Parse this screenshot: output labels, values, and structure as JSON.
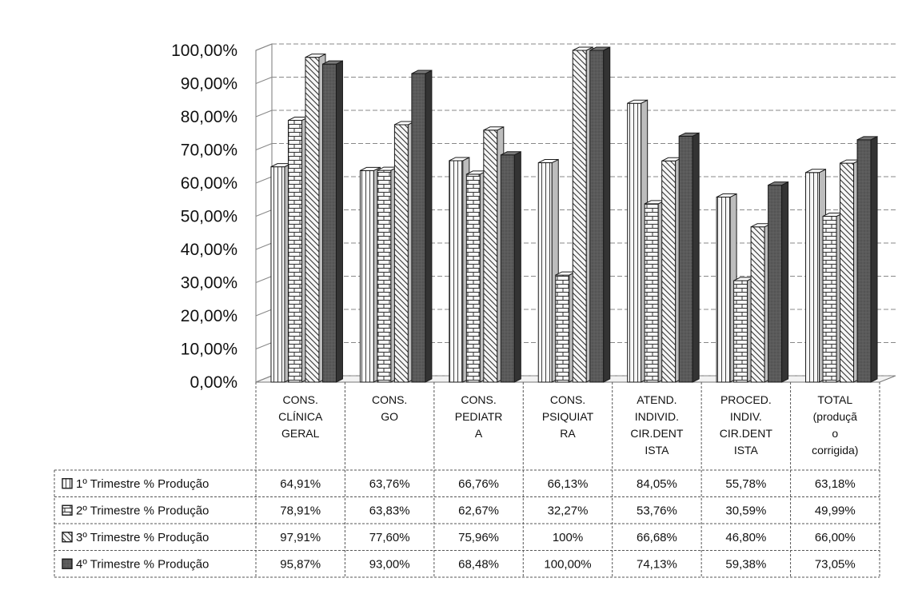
{
  "chart_data": {
    "type": "bar",
    "categories": [
      "CONS. CLÍNICA GERAL",
      "CONS. GO",
      "CONS. PEDIATRA",
      "CONS. PSIQUIATRA",
      "ATEND. INDIVID. CIR.DENTISTA",
      "PROCED. INDIV. CIR.DENTISTA",
      "TOTAL (produção corrigida)"
    ],
    "category_label_lines": [
      [
        "CONS.",
        "CLÍNICA",
        "GERAL"
      ],
      [
        "CONS.",
        "GO"
      ],
      [
        "CONS.",
        "PEDIATR",
        "A"
      ],
      [
        "CONS.",
        "PSIQUIAT",
        "RA"
      ],
      [
        "ATEND.",
        "INDIVID.",
        "CIR.DENT",
        "ISTA"
      ],
      [
        "PROCED.",
        "INDIV.",
        "CIR.DENT",
        "ISTA"
      ],
      [
        "TOTAL",
        "(produçã",
        "o",
        "corrigida)"
      ]
    ],
    "series": [
      {
        "name": "1º Trimestre % Produção",
        "pattern": "vertical-stripes",
        "values": [
          64.91,
          63.76,
          66.76,
          66.13,
          84.05,
          55.78,
          63.18
        ],
        "labels": [
          "64,91%",
          "63,76%",
          "66,76%",
          "66,13%",
          "84,05%",
          "55,78%",
          "63,18%"
        ]
      },
      {
        "name": "2º Trimestre % Produção",
        "pattern": "brick",
        "values": [
          78.91,
          63.83,
          62.67,
          32.27,
          53.76,
          30.59,
          49.99
        ],
        "labels": [
          "78,91%",
          "63,83%",
          "62,67%",
          "32,27%",
          "53,76%",
          "30,59%",
          "49,99%"
        ]
      },
      {
        "name": "3º Trimestre % Produção",
        "pattern": "diagonal-stripes",
        "values": [
          97.91,
          77.6,
          75.96,
          100,
          66.68,
          46.8,
          66.0
        ],
        "labels": [
          "97,91%",
          "77,60%",
          "75,96%",
          "100%",
          "66,68%",
          "46,80%",
          "66,00%"
        ]
      },
      {
        "name": "4º Trimestre % Produção",
        "pattern": "dark-solid",
        "values": [
          95.87,
          93.0,
          68.48,
          100.0,
          74.13,
          59.38,
          73.05
        ],
        "labels": [
          "95,87%",
          "93,00%",
          "68,48%",
          "100,00%",
          "74,13%",
          "59,38%",
          "73,05%"
        ]
      }
    ],
    "y_ticks": [
      "0,00%",
      "10,00%",
      "20,00%",
      "30,00%",
      "40,00%",
      "50,00%",
      "60,00%",
      "70,00%",
      "80,00%",
      "90,00%",
      "100,00%"
    ],
    "ylim": [
      0,
      100
    ],
    "grid": true,
    "legend_placement": "data-table-left",
    "three_d": true
  },
  "colors": {
    "dark_bar": "#555555",
    "dark_bar_side": "#333333",
    "light_bar": "#f4f4f4",
    "outline": "#1a1a1a"
  }
}
